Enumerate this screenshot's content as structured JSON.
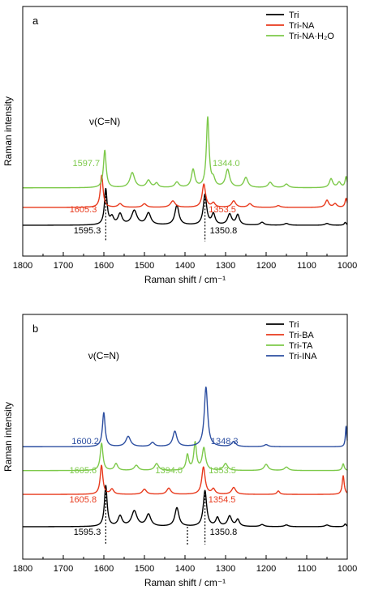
{
  "chart_data": [
    {
      "type": "line",
      "panel_label": "a",
      "xlabel": "Raman shift / cm⁻¹",
      "ylabel": "Raman intensity",
      "xlim": [
        1800,
        1000
      ],
      "x_ticks": [
        1800,
        1700,
        1600,
        1500,
        1400,
        1300,
        1200,
        1100,
        1000
      ],
      "vibration_label": "ν(C=N)",
      "legend_position": "top-right",
      "series": [
        {
          "name": "Tri",
          "color": "#000000",
          "offset": 0,
          "peaks": [
            [
              1595.3,
              1.0,
              4
            ],
            [
              1580,
              0.2,
              5
            ],
            [
              1560,
              0.3,
              6
            ],
            [
              1525,
              0.4,
              8
            ],
            [
              1490,
              0.33,
              7
            ],
            [
              1420,
              0.55,
              6
            ],
            [
              1350.8,
              0.85,
              5
            ],
            [
              1330,
              0.3,
              5
            ],
            [
              1290,
              0.3,
              6
            ],
            [
              1270,
              0.28,
              5
            ],
            [
              1210,
              0.08,
              6
            ],
            [
              1150,
              0.05,
              6
            ],
            [
              1050,
              0.05,
              6
            ],
            [
              1005,
              0.08,
              3
            ]
          ]
        },
        {
          "name": "Tri-NA",
          "color": "#e8391c",
          "offset": 0.5,
          "peaks": [
            [
              1605.3,
              0.9,
              4
            ],
            [
              1560,
              0.1,
              6
            ],
            [
              1500,
              0.1,
              6
            ],
            [
              1430,
              0.18,
              7
            ],
            [
              1353.5,
              0.65,
              5
            ],
            [
              1330,
              0.12,
              5
            ],
            [
              1280,
              0.18,
              6
            ],
            [
              1240,
              0.1,
              6
            ],
            [
              1170,
              0.05,
              6
            ],
            [
              1050,
              0.2,
              5
            ],
            [
              1030,
              0.1,
              5
            ],
            [
              1003,
              0.25,
              3
            ]
          ]
        },
        {
          "name": "Tri-NA·H₂O",
          "color": "#7dc94a",
          "offset": 1.05,
          "peaks": [
            [
              1597.7,
              1.05,
              4
            ],
            [
              1530,
              0.42,
              7
            ],
            [
              1490,
              0.2,
              6
            ],
            [
              1470,
              0.12,
              5
            ],
            [
              1420,
              0.15,
              6
            ],
            [
              1380,
              0.5,
              5
            ],
            [
              1344.0,
              1.95,
              4
            ],
            [
              1330,
              0.2,
              5
            ],
            [
              1295,
              0.5,
              6
            ],
            [
              1250,
              0.28,
              6
            ],
            [
              1190,
              0.15,
              6
            ],
            [
              1150,
              0.1,
              6
            ],
            [
              1040,
              0.25,
              5
            ],
            [
              1020,
              0.15,
              5
            ],
            [
              1003,
              0.3,
              3
            ]
          ]
        }
      ],
      "annotations": [
        {
          "text": "1597.7",
          "color": "#7dc94a",
          "wn": 1597.7,
          "side": "left",
          "row": 2
        },
        {
          "text": "1344.0",
          "color": "#7dc94a",
          "wn": 1344.0,
          "side": "right",
          "row": 2
        },
        {
          "text": "1605.3",
          "color": "#e8391c",
          "wn": 1605.3,
          "side": "left",
          "row": 1
        },
        {
          "text": "1353.5",
          "color": "#e8391c",
          "wn": 1353.5,
          "side": "right",
          "row": 1
        },
        {
          "text": "1595.3",
          "color": "#000000",
          "wn": 1595.3,
          "side": "left",
          "row": 0
        },
        {
          "text": "1350.8",
          "color": "#000000",
          "wn": 1350.8,
          "side": "right",
          "row": 0
        }
      ],
      "drop_lines": [
        1595.3,
        1350.8
      ]
    },
    {
      "type": "line",
      "panel_label": "b",
      "xlabel": "Raman shift / cm⁻¹",
      "ylabel": "Raman intensity",
      "xlim": [
        1800,
        1000
      ],
      "x_ticks": [
        1800,
        1700,
        1600,
        1500,
        1400,
        1300,
        1200,
        1100,
        1000
      ],
      "vibration_label": "ν(C=N)",
      "legend_position": "top-right",
      "series": [
        {
          "name": "Tri",
          "color": "#000000",
          "offset": 0,
          "peaks": [
            [
              1595.3,
              1.2,
              4
            ],
            [
              1560,
              0.3,
              6
            ],
            [
              1525,
              0.45,
              8
            ],
            [
              1490,
              0.35,
              7
            ],
            [
              1420,
              0.55,
              6
            ],
            [
              1350.8,
              1.05,
              5
            ],
            [
              1320,
              0.25,
              5
            ],
            [
              1290,
              0.3,
              6
            ],
            [
              1270,
              0.2,
              5
            ],
            [
              1210,
              0.06,
              6
            ],
            [
              1150,
              0.05,
              6
            ],
            [
              1050,
              0.05,
              6
            ],
            [
              1005,
              0.08,
              3
            ]
          ]
        },
        {
          "name": "Tri-BA",
          "color": "#e8391c",
          "offset": 0.95,
          "peaks": [
            [
              1605.8,
              0.85,
              4
            ],
            [
              1580,
              0.15,
              5
            ],
            [
              1500,
              0.15,
              6
            ],
            [
              1440,
              0.18,
              6
            ],
            [
              1354.5,
              0.8,
              5
            ],
            [
              1330,
              0.15,
              5
            ],
            [
              1280,
              0.2,
              6
            ],
            [
              1170,
              0.1,
              4
            ],
            [
              1010,
              0.55,
              3
            ]
          ]
        },
        {
          "name": "Tri-TA",
          "color": "#7dc94a",
          "offset": 1.65,
          "peaks": [
            [
              1605.6,
              0.8,
              4
            ],
            [
              1570,
              0.2,
              5
            ],
            [
              1520,
              0.15,
              6
            ],
            [
              1470,
              0.2,
              6
            ],
            [
              1394.0,
              0.45,
              4
            ],
            [
              1375,
              0.8,
              4
            ],
            [
              1353.5,
              0.65,
              5
            ],
            [
              1300,
              0.2,
              6
            ],
            [
              1200,
              0.18,
              6
            ],
            [
              1150,
              0.1,
              6
            ],
            [
              1010,
              0.2,
              3
            ]
          ]
        },
        {
          "name": "Tri-INA",
          "color": "#2d4fa1",
          "offset": 2.35,
          "peaks": [
            [
              1600.2,
              1.0,
              4
            ],
            [
              1540,
              0.3,
              7
            ],
            [
              1480,
              0.12,
              6
            ],
            [
              1425,
              0.45,
              6
            ],
            [
              1348.3,
              1.75,
              5
            ],
            [
              1280,
              0.15,
              6
            ],
            [
              1200,
              0.06,
              6
            ],
            [
              1003,
              0.6,
              2
            ]
          ]
        }
      ],
      "annotations": [
        {
          "text": "1600.2",
          "color": "#2d4fa1",
          "wn": 1600.2,
          "side": "left",
          "row": 3
        },
        {
          "text": "1348.3",
          "color": "#2d4fa1",
          "wn": 1348.3,
          "side": "right",
          "row": 3
        },
        {
          "text": "1605.6",
          "color": "#7dc94a",
          "wn": 1605.6,
          "side": "left",
          "row": 2
        },
        {
          "text": "1394.0",
          "color": "#7dc94a",
          "wn": 1394.0,
          "side": "left",
          "row": 2
        },
        {
          "text": "1353.5",
          "color": "#7dc94a",
          "wn": 1353.5,
          "side": "right",
          "row": 2
        },
        {
          "text": "1605.8",
          "color": "#e8391c",
          "wn": 1605.8,
          "side": "left",
          "row": 1
        },
        {
          "text": "1354.5",
          "color": "#e8391c",
          "wn": 1354.5,
          "side": "right",
          "row": 1
        },
        {
          "text": "1595.3",
          "color": "#000000",
          "wn": 1595.3,
          "side": "left",
          "row": 0
        },
        {
          "text": "1350.8",
          "color": "#000000",
          "wn": 1350.8,
          "side": "right",
          "row": 0
        }
      ],
      "drop_lines": [
        1595.3,
        1394.0,
        1350.8
      ]
    }
  ]
}
